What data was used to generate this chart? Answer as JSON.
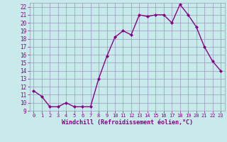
{
  "x": [
    0,
    1,
    2,
    3,
    4,
    5,
    6,
    7,
    8,
    9,
    10,
    11,
    12,
    13,
    14,
    15,
    16,
    17,
    18,
    19,
    20,
    21,
    22,
    23
  ],
  "y": [
    11.5,
    10.8,
    9.5,
    9.5,
    10.0,
    9.5,
    9.5,
    9.5,
    13.0,
    15.8,
    18.2,
    19.0,
    18.5,
    21.0,
    20.8,
    21.0,
    21.0,
    20.0,
    22.3,
    21.0,
    19.5,
    17.0,
    15.2,
    14.0
  ],
  "line_color": "#880088",
  "marker": "D",
  "marker_size": 2,
  "bg_color": "#c8eaea",
  "grid_color": "#9999bb",
  "xlabel": "Windchill (Refroidissement éolien,°C)",
  "xlabel_color": "#880088",
  "tick_color": "#880088",
  "ylim": [
    9,
    22.5
  ],
  "xlim": [
    -0.5,
    23.5
  ],
  "yticks": [
    9,
    10,
    11,
    12,
    13,
    14,
    15,
    16,
    17,
    18,
    19,
    20,
    21,
    22
  ],
  "xticks": [
    0,
    1,
    2,
    3,
    4,
    5,
    6,
    7,
    8,
    9,
    10,
    11,
    12,
    13,
    14,
    15,
    16,
    17,
    18,
    19,
    20,
    21,
    22,
    23
  ],
  "linewidth": 1.0
}
